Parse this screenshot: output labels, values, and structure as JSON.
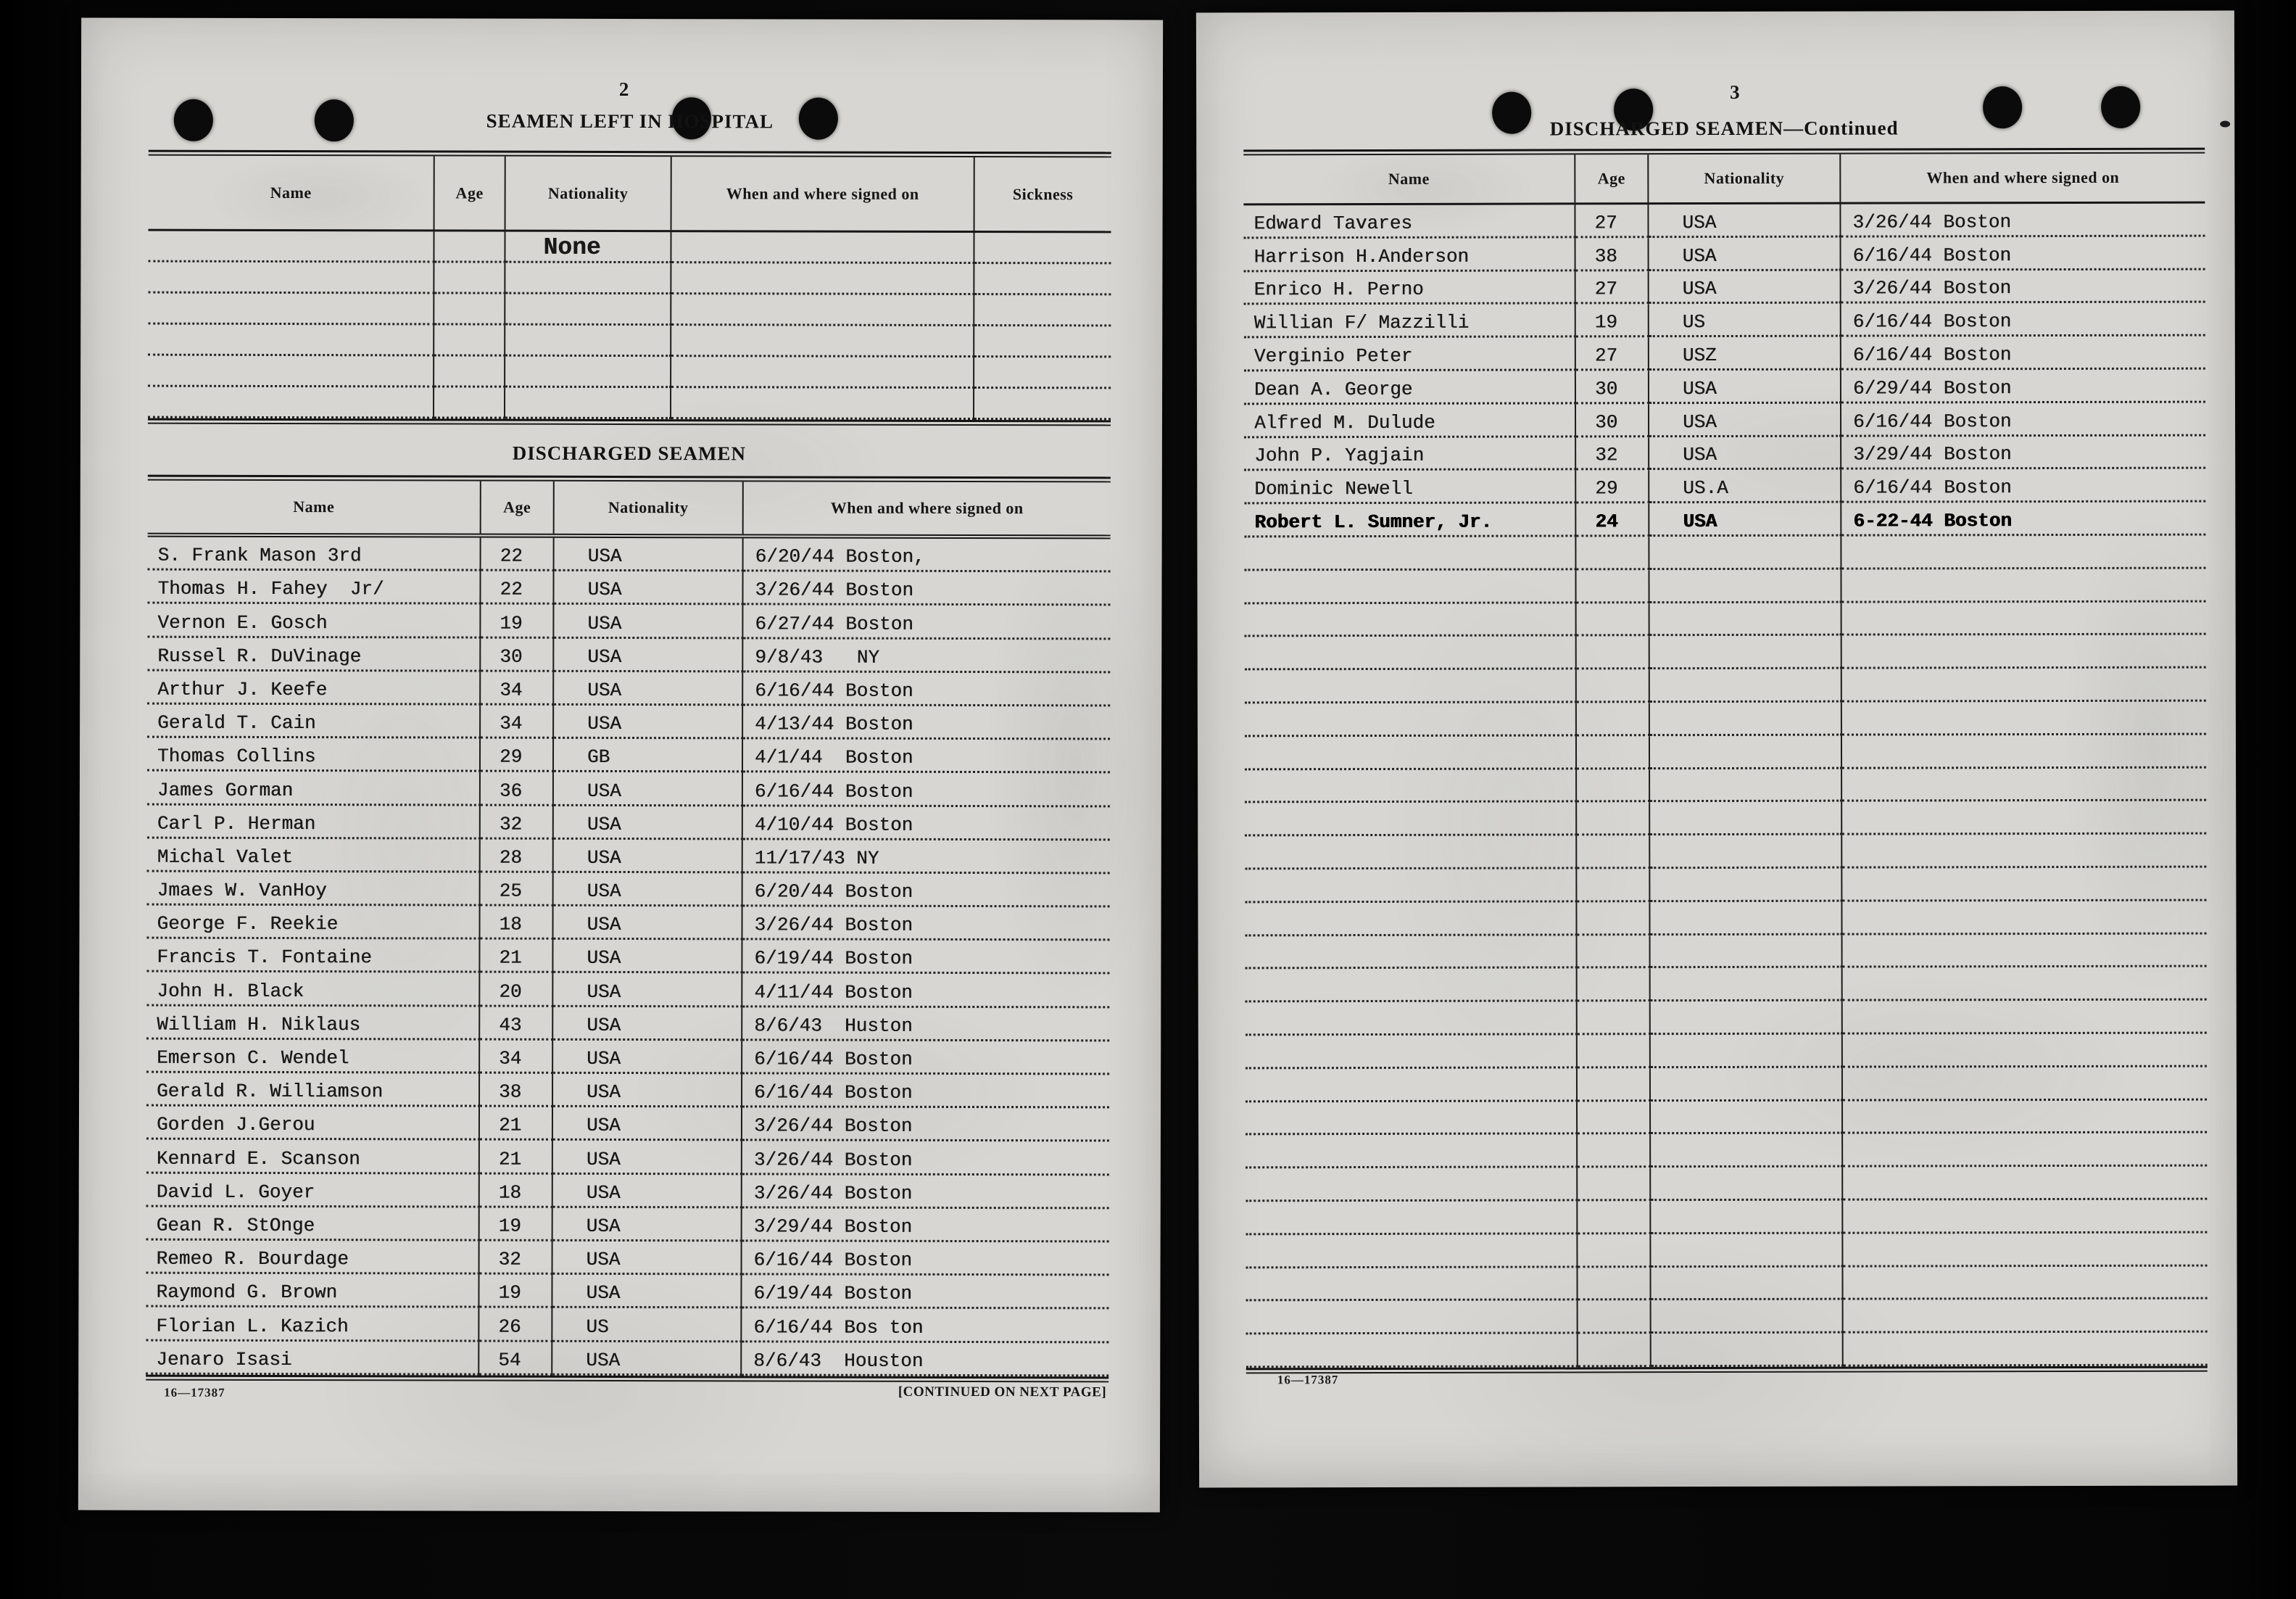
{
  "left_page": {
    "page_number": "2",
    "footer_code": "16—17387",
    "footer_note": "[CONTINUED ON NEXT PAGE]",
    "hospital": {
      "title": "SEAMEN LEFT IN HOSPITAL",
      "columns": [
        "Name",
        "Age",
        "Nationality",
        "When and where signed on",
        "Sickness"
      ],
      "rows": [
        {
          "cells": [
            "",
            "",
            "None",
            "",
            ""
          ]
        },
        {
          "cells": [
            "",
            "",
            "",
            "",
            ""
          ]
        },
        {
          "cells": [
            "",
            "",
            "",
            "",
            ""
          ]
        },
        {
          "cells": [
            "",
            "",
            "",
            "",
            ""
          ]
        },
        {
          "cells": [
            "",
            "",
            "",
            "",
            ""
          ]
        },
        {
          "cells": [
            "",
            "",
            "",
            "",
            ""
          ]
        }
      ],
      "empty_rows": 0
    },
    "discharged": {
      "title": "DISCHARGED SEAMEN",
      "columns": [
        "Name",
        "Age",
        "Nationality",
        "When and where signed on"
      ],
      "rows": [
        {
          "cells": [
            "S. Frank Mason 3rd",
            "22",
            "USA",
            "6/20/44 Boston,"
          ]
        },
        {
          "cells": [
            "Thomas H. Fahey  Jr/",
            "22",
            "USA",
            "3/26/44 Boston"
          ]
        },
        {
          "cells": [
            "Vernon E. Gosch",
            "19",
            "USA",
            "6/27/44 Boston"
          ]
        },
        {
          "cells": [
            "Russel R. DuVinage",
            "30",
            "USA",
            "9/8/43   NY"
          ]
        },
        {
          "cells": [
            "Arthur J. Keefe",
            "34",
            "USA",
            "6/16/44 Boston"
          ]
        },
        {
          "cells": [
            "Gerald T. Cain",
            "34",
            "USA",
            "4/13/44 Boston"
          ]
        },
        {
          "cells": [
            "Thomas Collins",
            "29",
            "GB",
            "4/1/44  Boston"
          ]
        },
        {
          "cells": [
            "James Gorman",
            "36",
            "USA",
            "6/16/44 Boston"
          ]
        },
        {
          "cells": [
            "Carl P. Herman",
            "32",
            "USA",
            "4/10/44 Boston"
          ]
        },
        {
          "cells": [
            "Michal Valet",
            "28",
            "USA",
            "11/17/43 NY"
          ]
        },
        {
          "cells": [
            "Jmaes W. VanHoy",
            "25",
            "USA",
            "6/20/44 Boston"
          ]
        },
        {
          "cells": [
            "George F. Reekie",
            "18",
            "USA",
            "3/26/44 Boston"
          ]
        },
        {
          "cells": [
            "Francis T. Fontaine",
            "21",
            "USA",
            "6/19/44 Boston"
          ]
        },
        {
          "cells": [
            "John H. Black",
            "20",
            "USA",
            "4/11/44 Boston"
          ]
        },
        {
          "cells": [
            "William H. Niklaus",
            "43",
            "USA",
            "8/6/43  Huston"
          ]
        },
        {
          "cells": [
            "Emerson C. Wendel",
            "34",
            "USA",
            "6/16/44 Boston"
          ]
        },
        {
          "cells": [
            "Gerald R. Williamson",
            "38",
            "USA",
            "6/16/44 Boston"
          ]
        },
        {
          "cells": [
            "Gorden J.Gerou",
            "21",
            "USA",
            "3/26/44 Boston"
          ]
        },
        {
          "cells": [
            "Kennard E. Scanson",
            "21",
            "USA",
            "3/26/44 Boston"
          ]
        },
        {
          "cells": [
            "David L. Goyer",
            "18",
            "USA",
            "3/26/44 Boston"
          ]
        },
        {
          "cells": [
            "Gean R. StOnge",
            "19",
            "USA",
            "3/29/44 Boston"
          ]
        },
        {
          "cells": [
            "Remeo R. Bourdage",
            "32",
            "USA",
            "6/16/44 Boston"
          ]
        },
        {
          "cells": [
            "Raymond G. Brown",
            "19",
            "USA",
            "6/19/44 Boston"
          ]
        },
        {
          "cells": [
            "Florian L. Kazich",
            "26",
            "US",
            "6/16/44 Bos ton"
          ]
        },
        {
          "cells": [
            "Jenaro Isasi",
            "54",
            "USA",
            "8/6/43  Houston"
          ]
        }
      ],
      "empty_rows": 0
    }
  },
  "right_page": {
    "page_number": "3",
    "title": "DISCHARGED SEAMEN—Continued",
    "footer_code": "16—17387",
    "continued": {
      "columns": [
        "Name",
        "Age",
        "Nationality",
        "When and where signed on"
      ],
      "rows": [
        {
          "cells": [
            "Edward Tavares",
            "27",
            "USA",
            "3/26/44 Boston"
          ]
        },
        {
          "cells": [
            "Harrison H.Anderson",
            "38",
            "USA",
            "6/16/44 Boston"
          ]
        },
        {
          "cells": [
            "Enrico H. Perno",
            "27",
            "USA",
            "3/26/44 Boston"
          ]
        },
        {
          "cells": [
            "Willian F/ Mazzilli",
            "19",
            "US",
            "6/16/44 Boston"
          ]
        },
        {
          "cells": [
            "Verginio Peter",
            "27",
            "USZ",
            "6/16/44 Boston"
          ]
        },
        {
          "cells": [
            "Dean A. George",
            "30",
            "USA",
            "6/29/44 Boston"
          ]
        },
        {
          "cells": [
            "Alfred M. Dulude",
            "30",
            "USA",
            "6/16/44 Boston"
          ]
        },
        {
          "cells": [
            "John P. Yagjain",
            "32",
            "USA",
            "3/29/44 Boston"
          ]
        },
        {
          "cells": [
            "Dominic Newell",
            "29",
            "US.A",
            "6/16/44 Boston"
          ]
        },
        {
          "cells": [
            "Robert L. Sumner, Jr.",
            "24",
            "USA",
            "6-22-44 Boston"
          ],
          "bold": true
        }
      ],
      "empty_rows": 25
    }
  }
}
